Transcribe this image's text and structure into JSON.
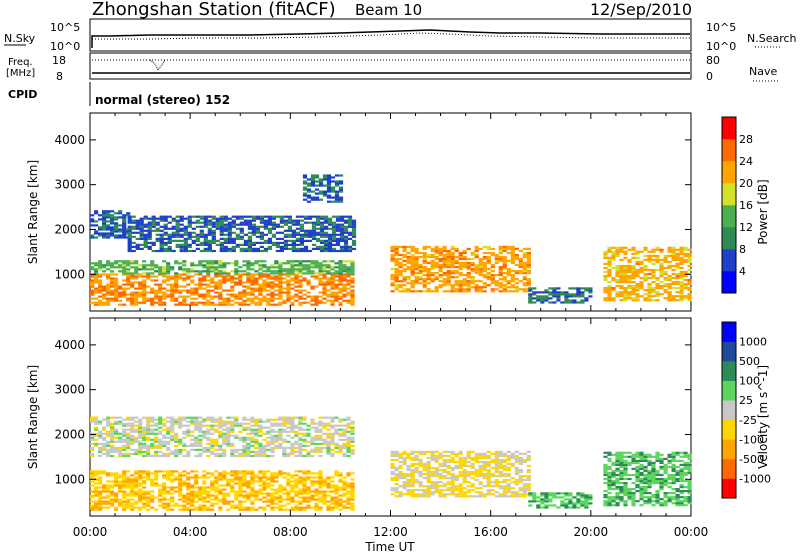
{
  "header": {
    "title": "Zhongshan Station (fitACF)",
    "beam": "Beam 10",
    "date": "12/Sep/2010"
  },
  "noise_panel": {
    "left_label": "N.Sky",
    "right_label": "N.Search",
    "tick_top": "10^5",
    "tick_bottom": "10^0"
  },
  "freq_panel": {
    "left_label_line1": "Freq.",
    "left_label_line2": "[MHz]",
    "right_label": "Nave",
    "left_ticks": [
      "18",
      "8"
    ],
    "right_ticks": [
      "80",
      "0"
    ]
  },
  "cpid": {
    "label": "CPID",
    "value": "normal (stereo) 152"
  },
  "colors": {
    "power_scale": [
      "#0000ff",
      "#1e40c8",
      "#2e8b57",
      "#4caf50",
      "#d4e12b",
      "#ffa500",
      "#ff6a00",
      "#ff0000"
    ],
    "velocity_scale": [
      "#ff0000",
      "#ff6a00",
      "#ffa500",
      "#ffd700",
      "#c8c8c8",
      "#5cd65c",
      "#2e8b57",
      "#1e4a9a",
      "#0000ff"
    ]
  },
  "chart_data": [
    {
      "type": "heatmap",
      "title": "",
      "xlabel": "Time UT",
      "ylabel": "Slant Range [km]",
      "xlim": [
        "00:00",
        "24:00"
      ],
      "ylim": [
        180,
        4600
      ],
      "x_ticks": [
        "00:00",
        "04:00",
        "08:00",
        "12:00",
        "16:00",
        "20:00",
        "00:00"
      ],
      "y_ticks": [
        1000,
        2000,
        3000,
        4000
      ],
      "colorbar": {
        "label": "Power [dB]",
        "levels": [
          "4",
          "8",
          "12",
          "16",
          "20",
          "24",
          "28"
        ],
        "range": [
          0,
          30
        ]
      },
      "regions": [
        {
          "t_start": 0.0,
          "t_end": 10.5,
          "r_start": 300,
          "r_end": 1000,
          "value": 22
        },
        {
          "t_start": 0.0,
          "t_end": 10.5,
          "r_start": 1000,
          "r_end": 1300,
          "value": 13
        },
        {
          "t_start": 0.0,
          "t_end": 1.5,
          "r_start": 1800,
          "r_end": 2400,
          "value": 7
        },
        {
          "t_start": 1.5,
          "t_end": 10.5,
          "r_start": 1500,
          "r_end": 2300,
          "value": 7
        },
        {
          "t_start": 8.5,
          "t_end": 10.0,
          "r_start": 2600,
          "r_end": 3200,
          "value": 7
        },
        {
          "t_start": 12.0,
          "t_end": 17.5,
          "r_start": 600,
          "r_end": 1600,
          "value": 21
        },
        {
          "t_start": 17.5,
          "t_end": 20.0,
          "r_start": 350,
          "r_end": 700,
          "value": 8
        },
        {
          "t_start": 20.5,
          "t_end": 24.0,
          "r_start": 400,
          "r_end": 1600,
          "value": 20
        }
      ]
    },
    {
      "type": "heatmap",
      "title": "",
      "xlabel": "Time UT",
      "ylabel": "Slant Range [km]",
      "xlim": [
        "00:00",
        "24:00"
      ],
      "ylim": [
        180,
        4600
      ],
      "x_ticks": [
        "00:00",
        "04:00",
        "08:00",
        "12:00",
        "16:00",
        "20:00",
        "00:00"
      ],
      "y_ticks": [
        1000,
        2000,
        3000,
        4000
      ],
      "colorbar": {
        "label": "Velocity [m s^-1]",
        "levels": [
          "1000",
          "500",
          "100",
          "25",
          "-25",
          "-100",
          "-500",
          "-1000"
        ],
        "range": [
          -1000,
          1000
        ]
      },
      "regions": [
        {
          "t_start": 0.0,
          "t_end": 10.5,
          "r_start": 300,
          "r_end": 1200,
          "value": -300
        },
        {
          "t_start": 0.0,
          "t_end": 10.5,
          "r_start": 1500,
          "r_end": 2400,
          "value": 0
        },
        {
          "t_start": 12.0,
          "t_end": 17.5,
          "r_start": 600,
          "r_end": 1600,
          "value": -150
        },
        {
          "t_start": 17.5,
          "t_end": 20.0,
          "r_start": 350,
          "r_end": 700,
          "value": 300
        },
        {
          "t_start": 20.5,
          "t_end": 24.0,
          "r_start": 400,
          "r_end": 1600,
          "value": 300
        }
      ]
    }
  ]
}
